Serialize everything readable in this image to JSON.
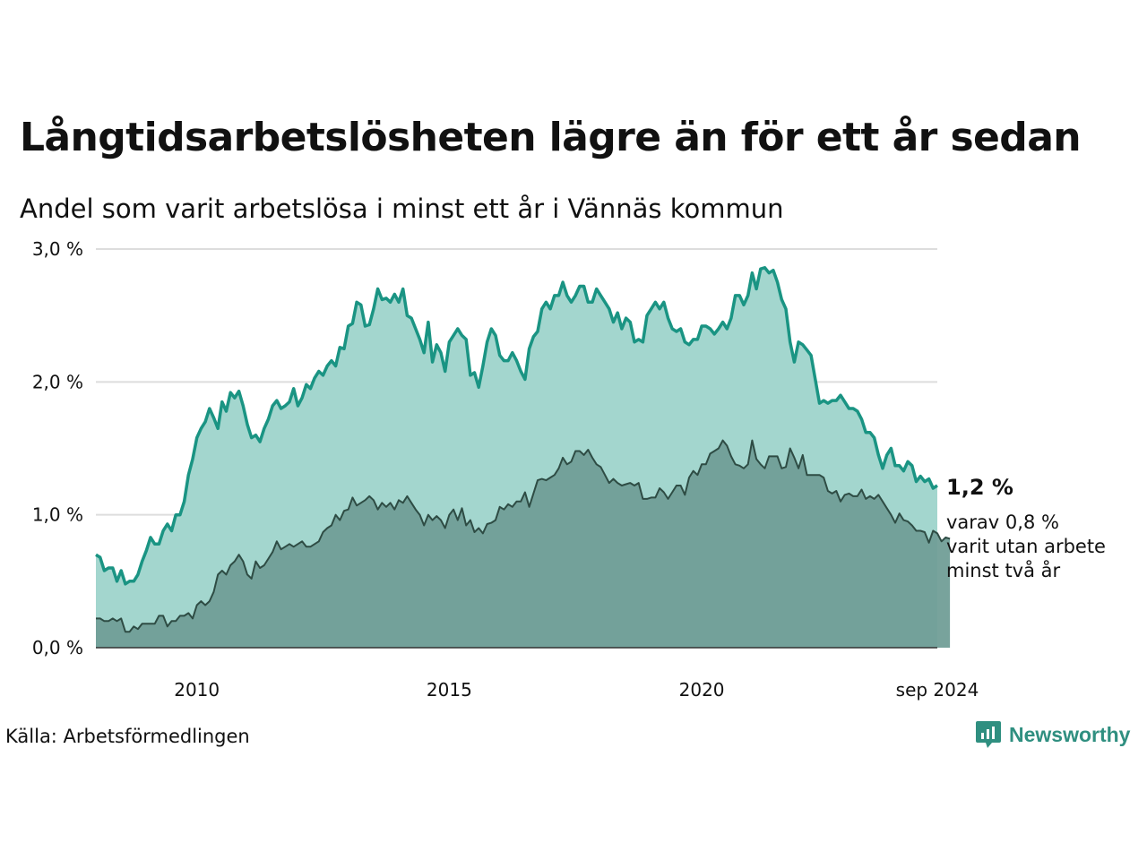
{
  "title": "Långtidsarbetslösheten lägre än för ett år sedan",
  "subtitle": "Andel som varit arbetslösa i minst ett år i Vännäs kommun",
  "source": "Källa: Arbetsförmedlingen",
  "brand": {
    "label": "Newsworthy",
    "icon": "newsworthy-logo-icon"
  },
  "colors": {
    "series1_line": "#1a9483",
    "series1_fill": "#a3d6ce",
    "series2_line": "#2e4c44",
    "series2_fill": "#719e97",
    "grid": "#dddddd"
  },
  "annotation": {
    "value": "1,2 %",
    "sub_lines": [
      "varav 0,8 %",
      "varit utan arbete",
      "minst två år"
    ]
  },
  "chart_data": {
    "type": "area",
    "x_start": "2008-01",
    "x_end": "2024-09",
    "x_step": "month",
    "x_ticks": [
      {
        "date": "2010-01",
        "label": "2010"
      },
      {
        "date": "2015-01",
        "label": "2015"
      },
      {
        "date": "2020-01",
        "label": "2020"
      },
      {
        "date": "2024-09",
        "label": "sep 2024"
      }
    ],
    "y_ticks": [
      {
        "value": 0,
        "label": "0,0 %"
      },
      {
        "value": 1,
        "label": "1,0 %"
      },
      {
        "value": 2,
        "label": "2,0 %"
      },
      {
        "value": 3,
        "label": "3,0 %"
      }
    ],
    "ylim": [
      0,
      3
    ],
    "grid": true,
    "series": [
      {
        "values": [
          0.7,
          0.68,
          0.58,
          0.6,
          0.6,
          0.5,
          0.58,
          0.48,
          0.5,
          0.5,
          0.55,
          0.65,
          0.73,
          0.83,
          0.78,
          0.78,
          0.88,
          0.93,
          0.88,
          1.0,
          1.0,
          1.1,
          1.3,
          1.42,
          1.58,
          1.65,
          1.7,
          1.8,
          1.73,
          1.65,
          1.85,
          1.78,
          1.92,
          1.88,
          1.93,
          1.82,
          1.68,
          1.58,
          1.6,
          1.55,
          1.65,
          1.72,
          1.82,
          1.86,
          1.8,
          1.82,
          1.85,
          1.95,
          1.82,
          1.88,
          1.98,
          1.95,
          2.03,
          2.08,
          2.05,
          2.12,
          2.16,
          2.12,
          2.26,
          2.25,
          2.42,
          2.44,
          2.6,
          2.58,
          2.42,
          2.43,
          2.55,
          2.7,
          2.62,
          2.63,
          2.6,
          2.66,
          2.6,
          2.7,
          2.5,
          2.48,
          2.4,
          2.32,
          2.22,
          2.45,
          2.15,
          2.28,
          2.22,
          2.08,
          2.3,
          2.35,
          2.4,
          2.35,
          2.32,
          2.05,
          2.07,
          1.96,
          2.12,
          2.3,
          2.4,
          2.35,
          2.2,
          2.16,
          2.16,
          2.22,
          2.16,
          2.08,
          2.02,
          2.25,
          2.34,
          2.38,
          2.55,
          2.6,
          2.55,
          2.65,
          2.65,
          2.75,
          2.65,
          2.6,
          2.65,
          2.72,
          2.72,
          2.6,
          2.6,
          2.7,
          2.65,
          2.6,
          2.55,
          2.45,
          2.52,
          2.4,
          2.48,
          2.45,
          2.3,
          2.32,
          2.3,
          2.5,
          2.55,
          2.6,
          2.55,
          2.6,
          2.48,
          2.4,
          2.38,
          2.4,
          2.3,
          2.28,
          2.32,
          2.32,
          2.42,
          2.42,
          2.4,
          2.36,
          2.4,
          2.45,
          2.4,
          2.48,
          2.65,
          2.65,
          2.58,
          2.65,
          2.82,
          2.7,
          2.85,
          2.86,
          2.82,
          2.84,
          2.75,
          2.62,
          2.55,
          2.3,
          2.15,
          2.3,
          2.28,
          2.24,
          2.2,
          2.02,
          1.84,
          1.86,
          1.84,
          1.86,
          1.86,
          1.9,
          1.85,
          1.8,
          1.8,
          1.78,
          1.72,
          1.62,
          1.62,
          1.58,
          1.45,
          1.35,
          1.45,
          1.5,
          1.37,
          1.37,
          1.33,
          1.4,
          1.37,
          1.25,
          1.29,
          1.25,
          1.27,
          1.2,
          1.22
        ]
      },
      {
        "values": [
          0.22,
          0.22,
          0.2,
          0.2,
          0.22,
          0.2,
          0.22,
          0.12,
          0.12,
          0.16,
          0.14,
          0.18,
          0.18,
          0.18,
          0.18,
          0.24,
          0.24,
          0.16,
          0.2,
          0.2,
          0.24,
          0.24,
          0.26,
          0.22,
          0.32,
          0.35,
          0.32,
          0.35,
          0.42,
          0.55,
          0.58,
          0.55,
          0.62,
          0.65,
          0.7,
          0.65,
          0.55,
          0.52,
          0.65,
          0.6,
          0.62,
          0.67,
          0.72,
          0.8,
          0.74,
          0.76,
          0.78,
          0.76,
          0.78,
          0.8,
          0.76,
          0.76,
          0.78,
          0.8,
          0.87,
          0.9,
          0.92,
          1.0,
          0.96,
          1.03,
          1.04,
          1.13,
          1.07,
          1.09,
          1.11,
          1.14,
          1.11,
          1.04,
          1.09,
          1.06,
          1.09,
          1.04,
          1.11,
          1.09,
          1.14,
          1.09,
          1.04,
          1.0,
          0.92,
          1.0,
          0.96,
          0.99,
          0.96,
          0.9,
          1.0,
          1.04,
          0.96,
          1.05,
          0.92,
          0.96,
          0.87,
          0.9,
          0.86,
          0.93,
          0.94,
          0.96,
          1.06,
          1.04,
          1.08,
          1.06,
          1.1,
          1.1,
          1.17,
          1.06,
          1.16,
          1.26,
          1.27,
          1.26,
          1.28,
          1.3,
          1.35,
          1.43,
          1.38,
          1.4,
          1.48,
          1.48,
          1.45,
          1.49,
          1.43,
          1.38,
          1.36,
          1.3,
          1.24,
          1.27,
          1.24,
          1.22,
          1.23,
          1.24,
          1.22,
          1.24,
          1.12,
          1.12,
          1.13,
          1.13,
          1.2,
          1.17,
          1.12,
          1.17,
          1.22,
          1.22,
          1.15,
          1.28,
          1.33,
          1.3,
          1.38,
          1.38,
          1.46,
          1.48,
          1.5,
          1.56,
          1.52,
          1.44,
          1.38,
          1.37,
          1.35,
          1.38,
          1.56,
          1.42,
          1.38,
          1.35,
          1.44,
          1.44,
          1.44,
          1.35,
          1.36,
          1.5,
          1.43,
          1.35,
          1.45,
          1.3,
          1.3,
          1.3,
          1.3,
          1.28,
          1.18,
          1.16,
          1.18,
          1.1,
          1.15,
          1.16,
          1.14,
          1.14,
          1.19,
          1.12,
          1.14,
          1.12,
          1.15,
          1.1,
          1.05,
          1.0,
          0.94,
          1.01,
          0.96,
          0.95,
          0.92,
          0.88,
          0.88,
          0.87,
          0.79,
          0.88,
          0.86,
          0.8,
          0.83,
          0.82
        ]
      }
    ]
  }
}
